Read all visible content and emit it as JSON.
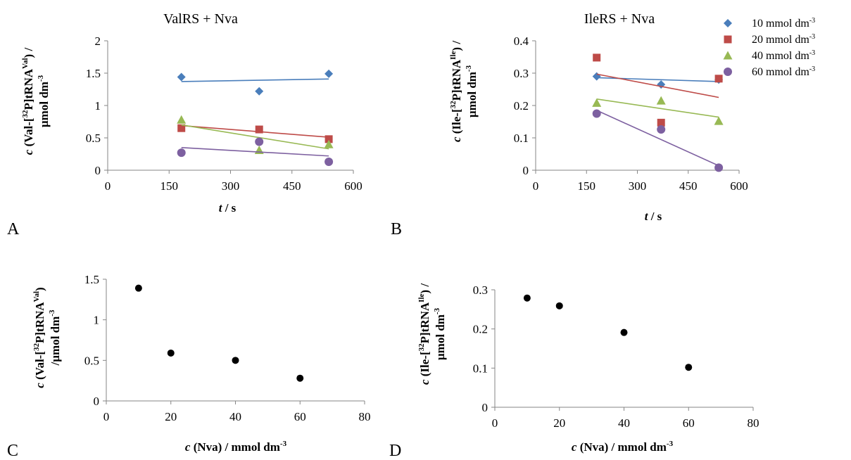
{
  "legend": [
    {
      "series": "10",
      "label": "10 mmol dm",
      "sup": "-3",
      "color": "#4a7ebb",
      "marker": "diamond"
    },
    {
      "series": "20",
      "label": "20 mmol dm",
      "sup": "-3",
      "color": "#be4b48",
      "marker": "square"
    },
    {
      "series": "40",
      "label": "40 mmol dm",
      "sup": "-3",
      "color": "#98b954",
      "marker": "triangle"
    },
    {
      "series": "60",
      "label": "60 mmol dm",
      "sup": "-3",
      "color": "#7d60a0",
      "marker": "circle"
    }
  ],
  "chart_data": [
    {
      "panel": "A",
      "type": "scatter",
      "title": "ValRS + Nva",
      "xlabel": {
        "italic": "t",
        "rest": " / s"
      },
      "ylabel": [
        "",
        "c (Val-[32P]tRNAVal) /",
        "µmol dm-3"
      ],
      "xlim": [
        0,
        600
      ],
      "ylim": [
        0,
        2
      ],
      "xticks": [
        0,
        150,
        300,
        450,
        600
      ],
      "yticks": [
        0,
        0.5,
        1,
        1.5,
        2
      ],
      "ytick_labels": [
        "0",
        "0.5",
        "1",
        "1.5",
        "2"
      ],
      "grid": false,
      "series": [
        {
          "name": "10 mmol dm-3",
          "marker": "diamond",
          "color": "#4a7ebb",
          "x": [
            180,
            370,
            540
          ],
          "y": [
            1.44,
            1.22,
            1.49
          ],
          "trend": [
            1.37,
            1.41
          ]
        },
        {
          "name": "20 mmol dm-3",
          "marker": "square",
          "color": "#be4b48",
          "x": [
            180,
            370,
            540
          ],
          "y": [
            0.65,
            0.63,
            0.48
          ],
          "trend": [
            0.69,
            0.51
          ]
        },
        {
          "name": "40 mmol dm-3",
          "marker": "triangle",
          "color": "#98b954",
          "x": [
            180,
            370,
            540
          ],
          "y": [
            0.78,
            0.31,
            0.4
          ],
          "trend": [
            0.7,
            0.33
          ]
        },
        {
          "name": "60 mmol dm-3",
          "marker": "circle",
          "color": "#7d60a0",
          "x": [
            180,
            370,
            540
          ],
          "y": [
            0.27,
            0.44,
            0.13
          ],
          "trend": [
            0.35,
            0.22
          ]
        }
      ]
    },
    {
      "panel": "B",
      "type": "scatter",
      "title": "IleRS + Nva",
      "xlabel": {
        "italic": "t",
        "rest": " / s"
      },
      "ylabel": [
        "",
        "c (Ile-[32P]tRNAIle) /",
        "µmol dm-3"
      ],
      "xlim": [
        0,
        600
      ],
      "ylim": [
        0,
        0.4
      ],
      "xticks": [
        0,
        150,
        300,
        450,
        600
      ],
      "yticks": [
        0,
        0.1,
        0.2,
        0.3,
        0.4
      ],
      "ytick_labels": [
        "0",
        "0.1",
        "0.2",
        "0.3",
        "0.4"
      ],
      "grid": false,
      "legend_position": "top-right",
      "series": [
        {
          "name": "10 mmol dm-3",
          "marker": "diamond",
          "color": "#4a7ebb",
          "x": [
            180,
            370,
            540
          ],
          "y": [
            0.29,
            0.265,
            0.28
          ],
          "trend": [
            0.286,
            0.274
          ]
        },
        {
          "name": "20 mmol dm-3",
          "marker": "square",
          "color": "#be4b48",
          "x": [
            180,
            370,
            540
          ],
          "y": [
            0.348,
            0.147,
            0.283
          ],
          "trend": [
            0.297,
            0.225
          ]
        },
        {
          "name": "40 mmol dm-3",
          "marker": "triangle",
          "color": "#98b954",
          "x": [
            180,
            370,
            540
          ],
          "y": [
            0.208,
            0.215,
            0.152
          ],
          "trend": [
            0.22,
            0.164
          ]
        },
        {
          "name": "60 mmol dm-3",
          "marker": "circle",
          "color": "#7d60a0",
          "x": [
            180,
            370,
            540
          ],
          "y": [
            0.175,
            0.126,
            0.008
          ],
          "trend": [
            0.185,
            0.014
          ]
        }
      ]
    },
    {
      "panel": "C",
      "type": "scatter",
      "title": "",
      "xlabel": {
        "italic": "c",
        "rest": " (Nva) / mmol dm-3"
      },
      "ylabel": [
        "c (Val-[32P]tRNAVal)",
        "/µmol dm-3"
      ],
      "xlim": [
        0,
        80
      ],
      "ylim": [
        0,
        1.5
      ],
      "xticks": [
        0,
        20,
        40,
        60,
        80
      ],
      "yticks": [
        0,
        0.5,
        1,
        1.5
      ],
      "ytick_labels": [
        "0",
        "0.5",
        "1",
        "1.5"
      ],
      "grid": false,
      "series": [
        {
          "marker": "circle",
          "color": "#000000",
          "x": [
            10,
            20,
            40,
            60
          ],
          "y": [
            1.39,
            0.59,
            0.5,
            0.28
          ]
        }
      ]
    },
    {
      "panel": "D",
      "type": "scatter",
      "title": "",
      "xlabel": {
        "italic": "c",
        "rest": " (Nva) / mmol dm-3"
      },
      "ylabel": [
        "c (Ile-[32P]tRNAIle) /",
        "µmol dm-3"
      ],
      "xlim": [
        0,
        80
      ],
      "ylim": [
        0,
        0.3
      ],
      "xticks": [
        0,
        20,
        40,
        60,
        80
      ],
      "yticks": [
        0,
        0.1,
        0.2,
        0.3
      ],
      "ytick_labels": [
        "0",
        "0.1",
        "0.2",
        "0.3"
      ],
      "grid": false,
      "series": [
        {
          "marker": "circle",
          "color": "#000000",
          "x": [
            10,
            20,
            40,
            60
          ],
          "y": [
            0.279,
            0.259,
            0.191,
            0.102
          ]
        }
      ]
    }
  ]
}
